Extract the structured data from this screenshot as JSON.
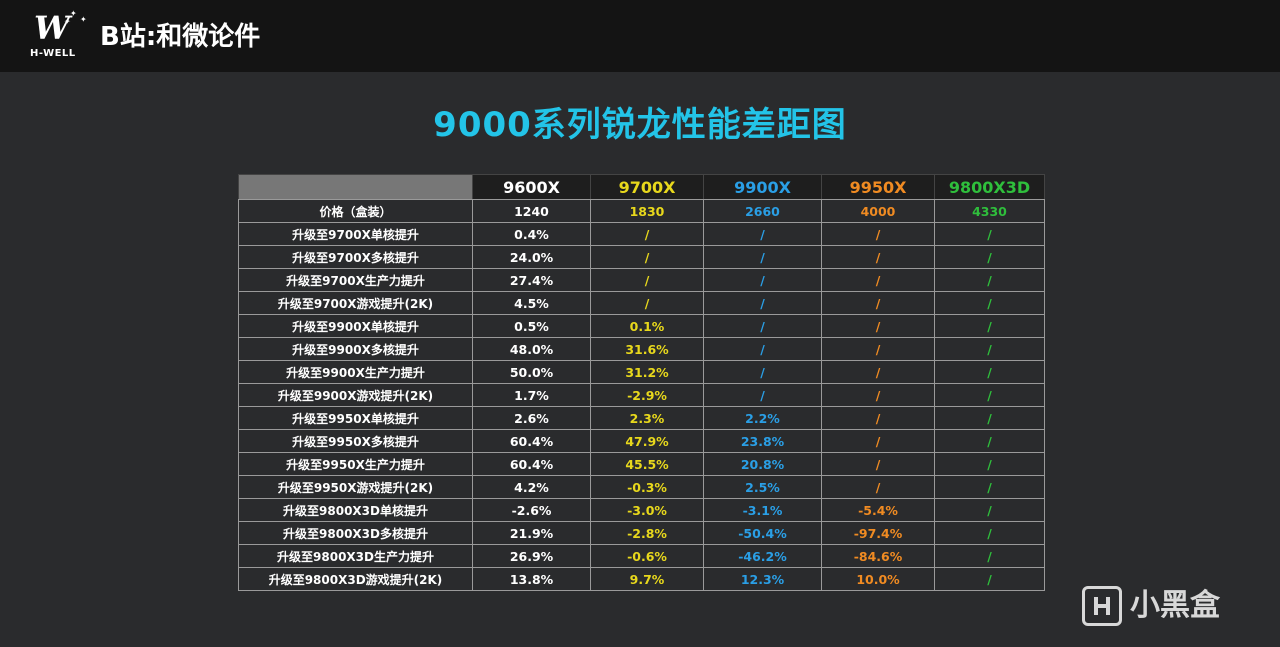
{
  "header": {
    "logo_text": "H-WELL",
    "brand_title": "B站:和微论件"
  },
  "title": "9000系列锐龙性能差距图",
  "colors": {
    "title": "#23c4e8",
    "9600X": "#ffffff",
    "9700X": "#e8d81c",
    "9900X": "#2a9fe6",
    "9950X": "#f08b22",
    "9800X3D": "#2fbf3c"
  },
  "table": {
    "columns": [
      "9600X",
      "9700X",
      "9900X",
      "9950X",
      "9800X3D"
    ],
    "rows": [
      {
        "label": "价格（盒装）",
        "values": [
          "1240",
          "1830",
          "2660",
          "4000",
          "4330"
        ]
      },
      {
        "label": "升级至9700X单核提升",
        "values": [
          "0.4%",
          "/",
          "/",
          "/",
          "/"
        ]
      },
      {
        "label": "升级至9700X多核提升",
        "values": [
          "24.0%",
          "/",
          "/",
          "/",
          "/"
        ]
      },
      {
        "label": "升级至9700X生产力提升",
        "values": [
          "27.4%",
          "/",
          "/",
          "/",
          "/"
        ]
      },
      {
        "label": "升级至9700X游戏提升(2K)",
        "values": [
          "4.5%",
          "/",
          "/",
          "/",
          "/"
        ]
      },
      {
        "label": "升级至9900X单核提升",
        "values": [
          "0.5%",
          "0.1%",
          "/",
          "/",
          "/"
        ]
      },
      {
        "label": "升级至9900X多核提升",
        "values": [
          "48.0%",
          "31.6%",
          "/",
          "/",
          "/"
        ]
      },
      {
        "label": "升级至9900X生产力提升",
        "values": [
          "50.0%",
          "31.2%",
          "/",
          "/",
          "/"
        ]
      },
      {
        "label": "升级至9900X游戏提升(2K)",
        "values": [
          "1.7%",
          "-2.9%",
          "/",
          "/",
          "/"
        ]
      },
      {
        "label": "升级至9950X单核提升",
        "values": [
          "2.6%",
          "2.3%",
          "2.2%",
          "/",
          "/"
        ]
      },
      {
        "label": "升级至9950X多核提升",
        "values": [
          "60.4%",
          "47.9%",
          "23.8%",
          "/",
          "/"
        ]
      },
      {
        "label": "升级至9950X生产力提升",
        "values": [
          "60.4%",
          "45.5%",
          "20.8%",
          "/",
          "/"
        ]
      },
      {
        "label": "升级至9950X游戏提升(2K)",
        "values": [
          "4.2%",
          "-0.3%",
          "2.5%",
          "/",
          "/"
        ]
      },
      {
        "label": "升级至9800X3D单核提升",
        "values": [
          "-2.6%",
          "-3.0%",
          "-3.1%",
          "-5.4%",
          "/"
        ]
      },
      {
        "label": "升级至9800X3D多核提升",
        "values": [
          "21.9%",
          "-2.8%",
          "-50.4%",
          "-97.4%",
          "/"
        ]
      },
      {
        "label": "升级至9800X3D生产力提升",
        "values": [
          "26.9%",
          "-0.6%",
          "-46.2%",
          "-84.6%",
          "/"
        ]
      },
      {
        "label": "升级至9800X3D游戏提升(2K)",
        "values": [
          "13.8%",
          "9.7%",
          "12.3%",
          "10.0%",
          "/"
        ]
      }
    ]
  },
  "watermark": {
    "text": "小黑盒",
    "icon": "xiaoheihe-logo-icon"
  }
}
